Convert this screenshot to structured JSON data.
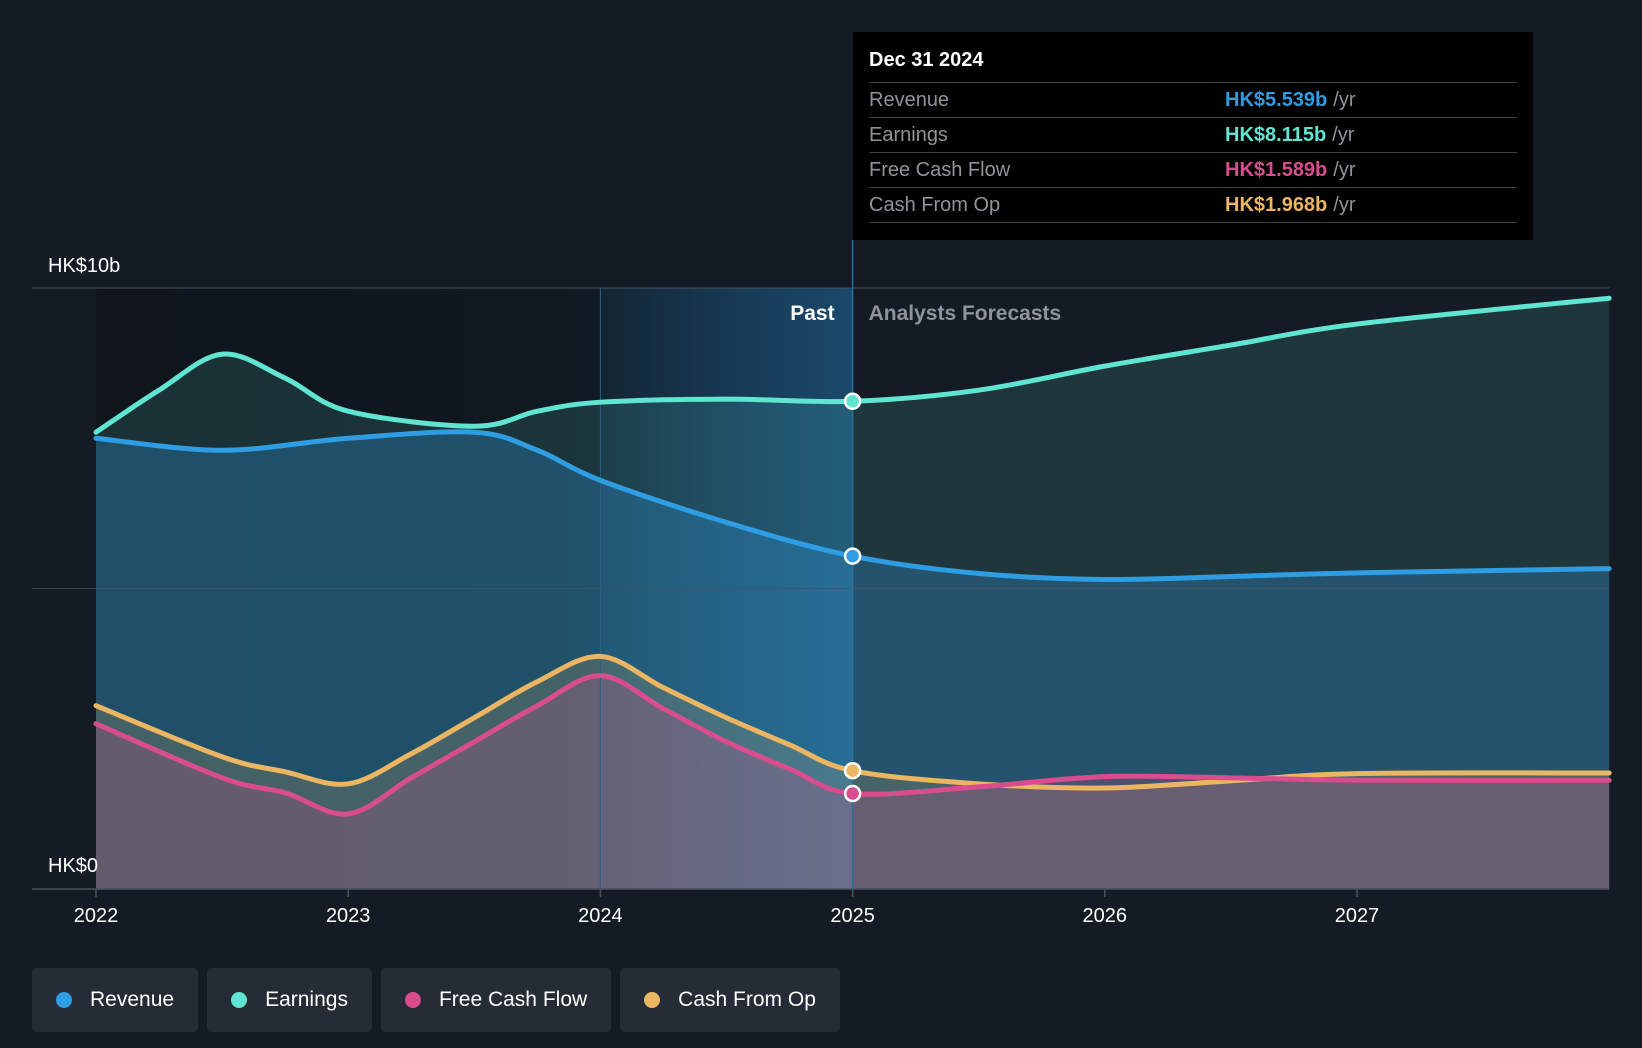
{
  "chart_data": {
    "type": "line",
    "y_axis": {
      "labels": [
        "HK$10b",
        "HK$0"
      ],
      "ylim": [
        0,
        10
      ],
      "unit": "HK$ b"
    },
    "x_axis": {
      "ticks": [
        2022,
        2023,
        2024,
        2025,
        2026,
        2027
      ],
      "tick_labels": [
        "2022",
        "2023",
        "2024",
        "2025",
        "2026",
        "2027"
      ],
      "range": [
        2022,
        2028
      ]
    },
    "past_label": "Past",
    "forecast_label": "Analysts Forecasts",
    "divider_x": 2025,
    "highlight_start_x": 2024,
    "series": [
      {
        "name": "Revenue",
        "color": "#2e9de4",
        "marker_x": 2025,
        "points": [
          [
            2022,
            7.5
          ],
          [
            2022.5,
            7.3
          ],
          [
            2023,
            7.5
          ],
          [
            2023.5,
            7.6
          ],
          [
            2023.75,
            7.3
          ],
          [
            2024,
            6.8
          ],
          [
            2024.5,
            6.1
          ],
          [
            2025,
            5.539
          ],
          [
            2025.5,
            5.25
          ],
          [
            2026,
            5.15
          ],
          [
            2026.5,
            5.2
          ],
          [
            2027,
            5.26
          ],
          [
            2028,
            5.33
          ]
        ]
      },
      {
        "name": "Earnings",
        "color": "#5fe5d1",
        "marker_x": 2025,
        "points": [
          [
            2022,
            7.6
          ],
          [
            2022.25,
            8.3
          ],
          [
            2022.5,
            8.9
          ],
          [
            2022.75,
            8.5
          ],
          [
            2023,
            7.95
          ],
          [
            2023.5,
            7.7
          ],
          [
            2023.75,
            7.95
          ],
          [
            2024,
            8.1
          ],
          [
            2024.5,
            8.15
          ],
          [
            2025,
            8.115
          ],
          [
            2025.5,
            8.3
          ],
          [
            2026,
            8.7
          ],
          [
            2026.5,
            9.05
          ],
          [
            2027,
            9.4
          ],
          [
            2028,
            9.83
          ]
        ]
      },
      {
        "name": "Free Cash Flow",
        "color": "#d94c8e",
        "marker_x": 2025,
        "points": [
          [
            2022,
            2.75
          ],
          [
            2022.5,
            1.85
          ],
          [
            2022.75,
            1.6
          ],
          [
            2023,
            1.25
          ],
          [
            2023.25,
            1.85
          ],
          [
            2023.5,
            2.45
          ],
          [
            2023.75,
            3.05
          ],
          [
            2024,
            3.55
          ],
          [
            2024.25,
            3.0
          ],
          [
            2024.5,
            2.45
          ],
          [
            2024.75,
            2.0
          ],
          [
            2025,
            1.589
          ],
          [
            2025.5,
            1.7
          ],
          [
            2026,
            1.87
          ],
          [
            2026.5,
            1.85
          ],
          [
            2027,
            1.81
          ],
          [
            2028,
            1.81
          ]
        ]
      },
      {
        "name": "Cash From Op",
        "color": "#ebb562",
        "marker_x": 2025,
        "points": [
          [
            2022,
            3.05
          ],
          [
            2022.5,
            2.2
          ],
          [
            2022.75,
            1.95
          ],
          [
            2023,
            1.75
          ],
          [
            2023.25,
            2.25
          ],
          [
            2023.5,
            2.85
          ],
          [
            2023.75,
            3.45
          ],
          [
            2024,
            3.87
          ],
          [
            2024.25,
            3.35
          ],
          [
            2024.5,
            2.85
          ],
          [
            2024.75,
            2.4
          ],
          [
            2025,
            1.968
          ],
          [
            2025.5,
            1.75
          ],
          [
            2026,
            1.68
          ],
          [
            2026.5,
            1.8
          ],
          [
            2027,
            1.92
          ],
          [
            2028,
            1.93
          ]
        ]
      }
    ]
  },
  "tooltip": {
    "date": "Dec 31 2024",
    "rows": [
      {
        "label": "Revenue",
        "value": "HK$5.539b",
        "unit": "/yr",
        "color": "#2e9de4"
      },
      {
        "label": "Earnings",
        "value": "HK$8.115b",
        "unit": "/yr",
        "color": "#5fe5d1"
      },
      {
        "label": "Free Cash Flow",
        "value": "HK$1.589b",
        "unit": "/yr",
        "color": "#d94c8e"
      },
      {
        "label": "Cash From Op",
        "value": "HK$1.968b",
        "unit": "/yr",
        "color": "#ebb562"
      }
    ]
  },
  "legend": [
    {
      "label": "Revenue",
      "color": "#2e9de4"
    },
    {
      "label": "Earnings",
      "color": "#5fe5d1"
    },
    {
      "label": "Free Cash Flow",
      "color": "#d94c8e"
    },
    {
      "label": "Cash From Op",
      "color": "#ebb562"
    }
  ]
}
